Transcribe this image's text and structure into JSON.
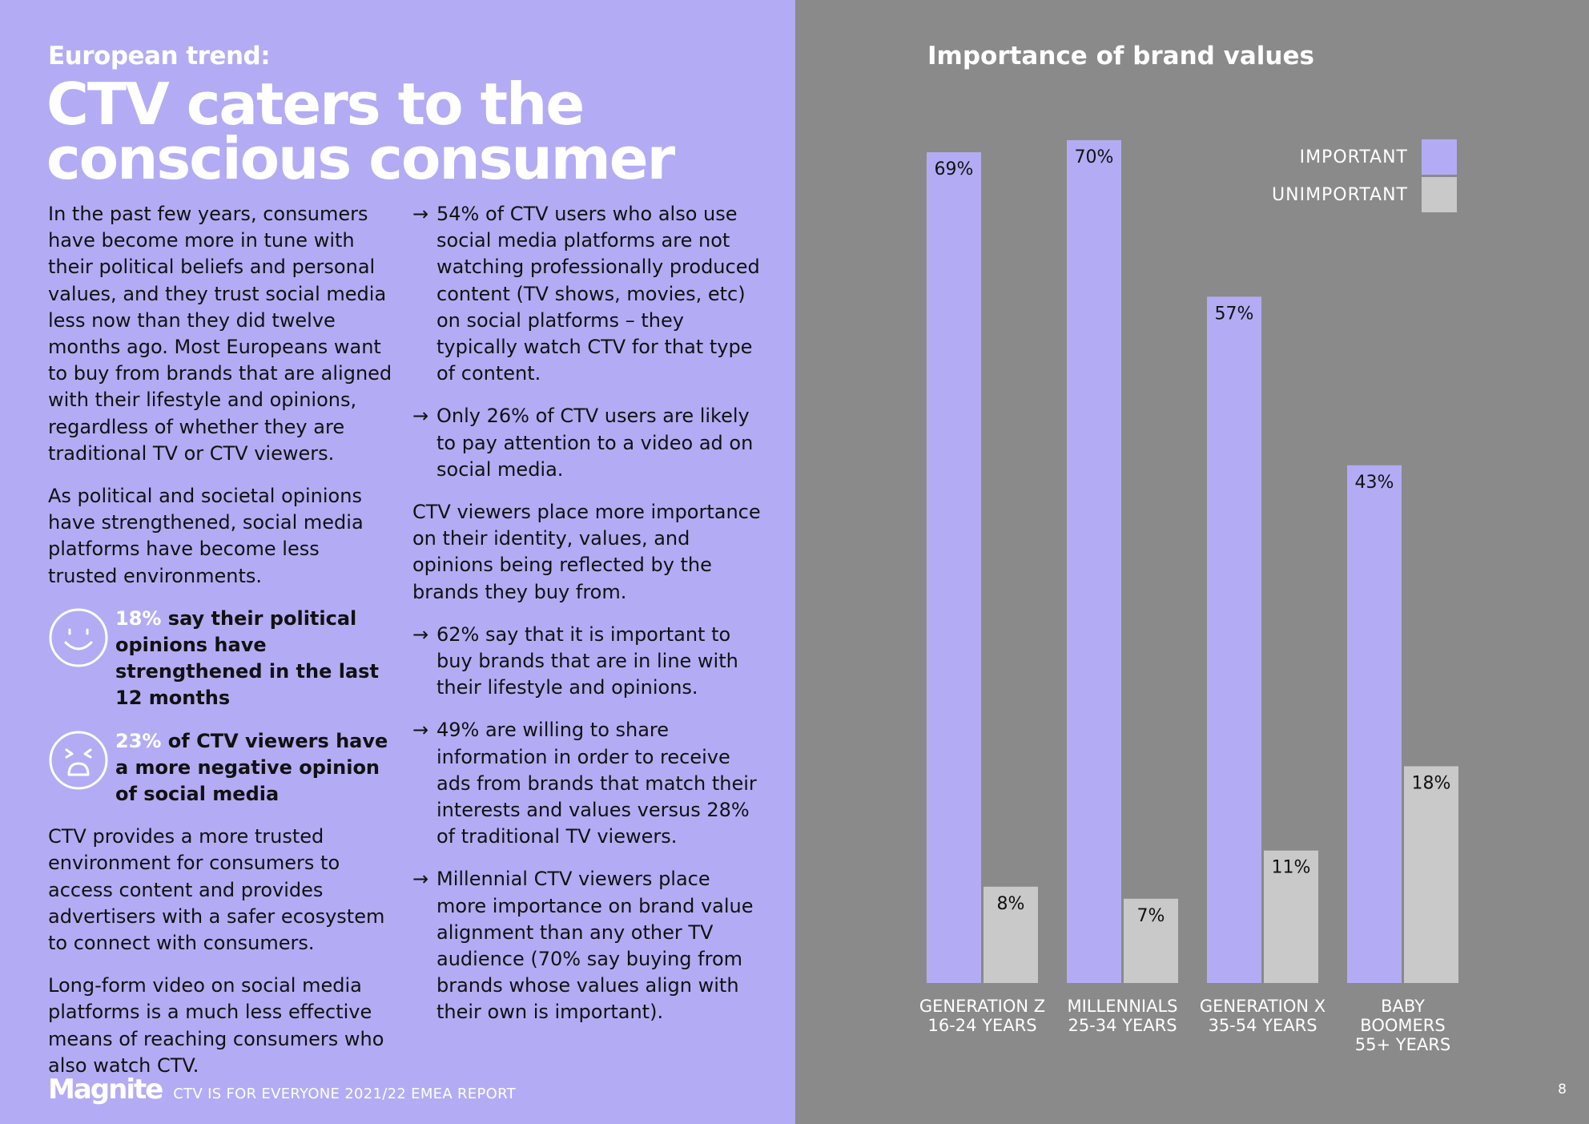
{
  "left": {
    "kicker": "European trend:",
    "title_line1": "CTV caters to the",
    "title_line2": "conscious consumer",
    "col1": {
      "p1": "In the past few years, consumers have become more in tune with their political beliefs and personal values, and they trust social media less now than they did twelve months ago. Most Europeans want to buy from brands that are aligned with their lifestyle and opinions, regardless of whether they are traditional TV or CTV viewers.",
      "p2": "As political and societal opinions have strengthened, social media platforms have become less trusted environments.",
      "stat1_pct": "18%",
      "stat1_text": " say their political opinions have strengthened in the last 12 months",
      "stat2_pct": "23%",
      "stat2_text": " of CTV viewers have a more negative opinion of social media",
      "p3": "CTV provides a more trusted environment for consumers to access content and provides advertisers with a safer ecosystem to connect with consumers.",
      "p4": "Long-form video on social media platforms is a much less effective means of reaching consumers who also watch CTV."
    },
    "col2": {
      "arrow_symbol": "→",
      "b1": "54% of CTV users who also use social media platforms are not watching professionally produced content (TV shows, movies, etc) on social platforms – they typically watch CTV for that type of content.",
      "b2": "Only 26% of CTV users are likely to pay attention to a video ad on social media.",
      "p1": "CTV viewers place more importance on their identity, values, and opinions being reflected by the brands they buy from.",
      "b3": "62% say that it is important to buy brands that are in line with their lifestyle and opinions.",
      "b4": "49% are willing to share information in order to receive ads from brands that match their interests and values versus 28% of traditional TV viewers.",
      "b5": "Millennial CTV viewers place more importance on brand value alignment than any other TV audience (70% say buying from brands whose values align with their own is important)."
    }
  },
  "footer": {
    "logo": "Magnite",
    "report": "CTV IS FOR EVERYONE 2021/22 EMEA REPORT",
    "page": "8"
  },
  "colors": {
    "left_bg": "#b3acf4",
    "right_bg": "#8a8a8a",
    "important": "#b3acf4",
    "unimportant": "#c9c9c9"
  },
  "chart_data": {
    "type": "bar",
    "title": "Importance of brand values",
    "categories": [
      [
        "GENERATION Z",
        "16-24 YEARS"
      ],
      [
        "MILLENNIALS",
        "25-34 YEARS"
      ],
      [
        "GENERATION X",
        "35-54 YEARS"
      ],
      [
        "BABY",
        "BOOMERS",
        "55+ YEARS"
      ]
    ],
    "series": [
      {
        "name": "IMPORTANT",
        "values": [
          69,
          70,
          57,
          43
        ],
        "labels": [
          "69%",
          "70%",
          "57%",
          "43%"
        ]
      },
      {
        "name": "UNIMPORTANT",
        "values": [
          8,
          7,
          11,
          18
        ],
        "labels": [
          "8%",
          "7%",
          "11%",
          "18%"
        ]
      }
    ],
    "ylim": [
      0,
      70
    ],
    "legend_position": "top-right",
    "grid": false
  }
}
